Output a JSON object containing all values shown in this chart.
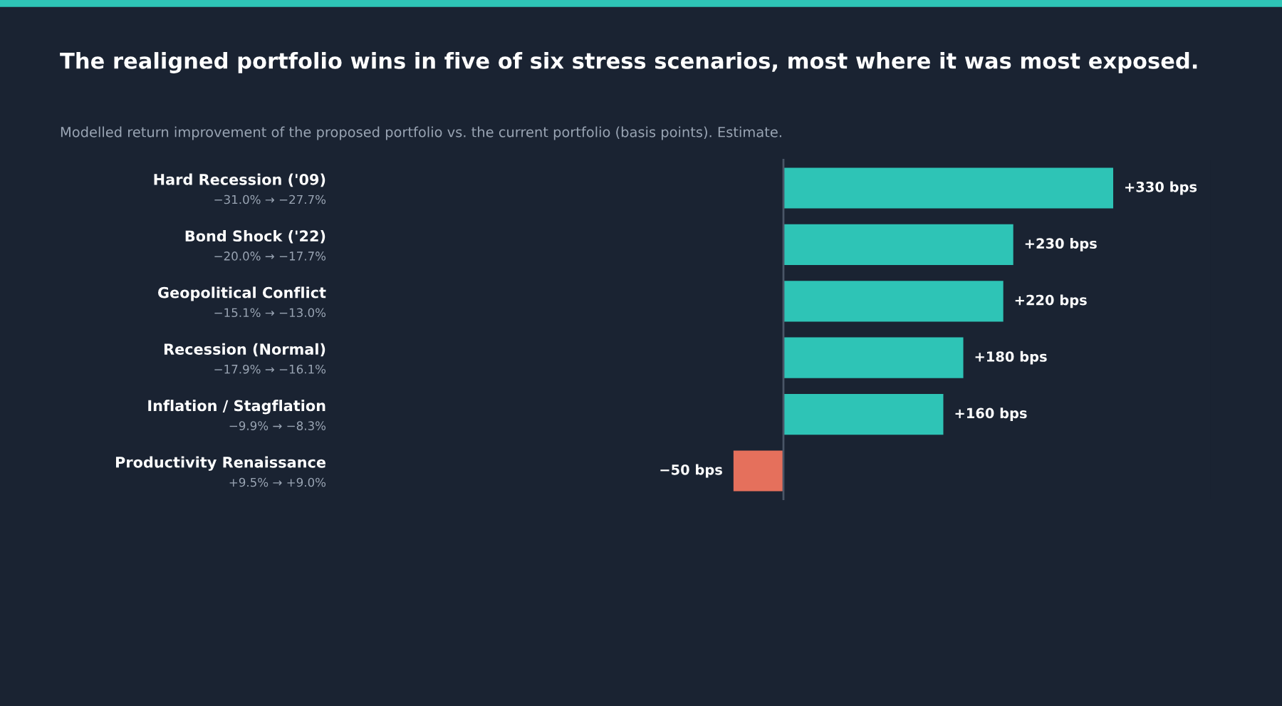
{
  "chart_data": {
    "type": "bar",
    "orientation": "horizontal",
    "title": "The realigned portfolio wins in five of six stress scenarios, most where it was most exposed.",
    "subtitle": "Modelled return improvement of the proposed portfolio vs. the current portfolio (basis points). Estimate.",
    "categories": [
      "Hard Recession ('09)",
      "Bond Shock ('22)",
      "Geopolitical Conflict",
      "Recession (Normal)",
      "Inflation / Stagflation",
      "Productivity Renaissance"
    ],
    "values": [
      330,
      230,
      220,
      180,
      160,
      -50
    ],
    "colors": [
      "#2ec4b6",
      "#2ec4b6",
      "#2ec4b6",
      "#2ec4b6",
      "#2ec4b6",
      "#e5705c"
    ],
    "value_labels": [
      "+330 bps",
      "+230 bps",
      "+220 bps",
      "+180 bps",
      "+160 bps",
      "−50 bps"
    ],
    "annotations": [
      "−31.0% → −27.7%",
      "−20.0% → −17.7%",
      "−15.1% → −13.0%",
      "−17.9% → −16.1%",
      "−9.9% → −8.3%",
      "+9.5% → +9.0%"
    ]
  }
}
